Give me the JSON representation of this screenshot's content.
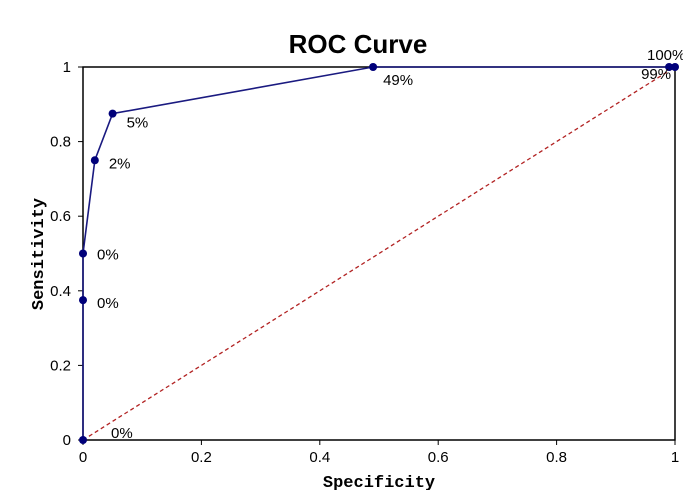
{
  "chart_data": {
    "type": "line",
    "title": "ROC Curve",
    "xlabel": "Specificity",
    "ylabel": "Sensitivity",
    "xlim": [
      0,
      1
    ],
    "ylim": [
      0,
      1
    ],
    "x_ticks": [
      "0",
      "0.2",
      "0.4",
      "0.6",
      "0.8",
      "1"
    ],
    "y_ticks": [
      "0",
      "0.2",
      "0.4",
      "0.6",
      "0.8",
      "1"
    ],
    "grid": false,
    "legend": "none",
    "series": [
      {
        "style": "solid",
        "color": "#1a1a80",
        "points": [
          {
            "x": 0.0,
            "y": 0.0,
            "label": "0%"
          },
          {
            "x": 0.0,
            "y": 0.375,
            "label": "0%"
          },
          {
            "x": 0.0,
            "y": 0.5,
            "label": "0%"
          },
          {
            "x": 0.02,
            "y": 0.75,
            "label": "2%"
          },
          {
            "x": 0.05,
            "y": 0.875,
            "label": "5%"
          },
          {
            "x": 0.49,
            "y": 1.0,
            "label": "49%"
          },
          {
            "x": 0.99,
            "y": 1.0,
            "label": "99%"
          },
          {
            "x": 1.0,
            "y": 1.0,
            "label": "100%"
          }
        ]
      },
      {
        "style": "dashed",
        "color": "#b22222",
        "points": [
          {
            "x": 0,
            "y": 0
          },
          {
            "x": 1,
            "y": 1
          }
        ]
      }
    ]
  }
}
